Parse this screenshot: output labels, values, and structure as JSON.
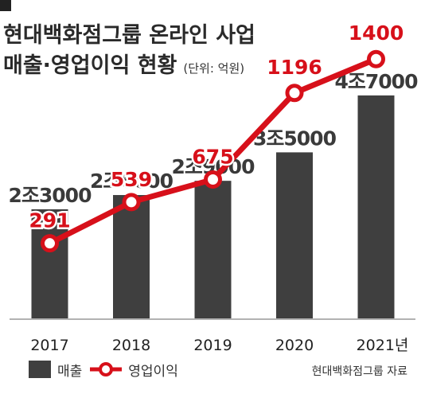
{
  "title_line1": "현대백화점그룹 온라인 사업",
  "title_line2": "매출·영업이익 현황",
  "unit": "(단위: 억원)",
  "source": "현대백화점그룹 자료",
  "colors": {
    "bar": "#3f3f3f",
    "line": "#d7101a",
    "axis": "#999999"
  },
  "chart_data": {
    "type": "bar",
    "categories": [
      "2017",
      "2018",
      "2019",
      "2020",
      "2021년"
    ],
    "series": [
      {
        "name": "매출",
        "type": "bar",
        "values": [
          23000,
          26000,
          29000,
          35000,
          47000
        ],
        "labels": [
          "2조3000",
          "2조6000",
          "2조9000",
          "3조5000",
          "4조7000"
        ]
      },
      {
        "name": "영업이익",
        "type": "line",
        "values": [
          291,
          539,
          675,
          1196,
          1400
        ],
        "labels": [
          "291",
          "539",
          "675",
          "1196",
          "1400"
        ]
      }
    ]
  }
}
